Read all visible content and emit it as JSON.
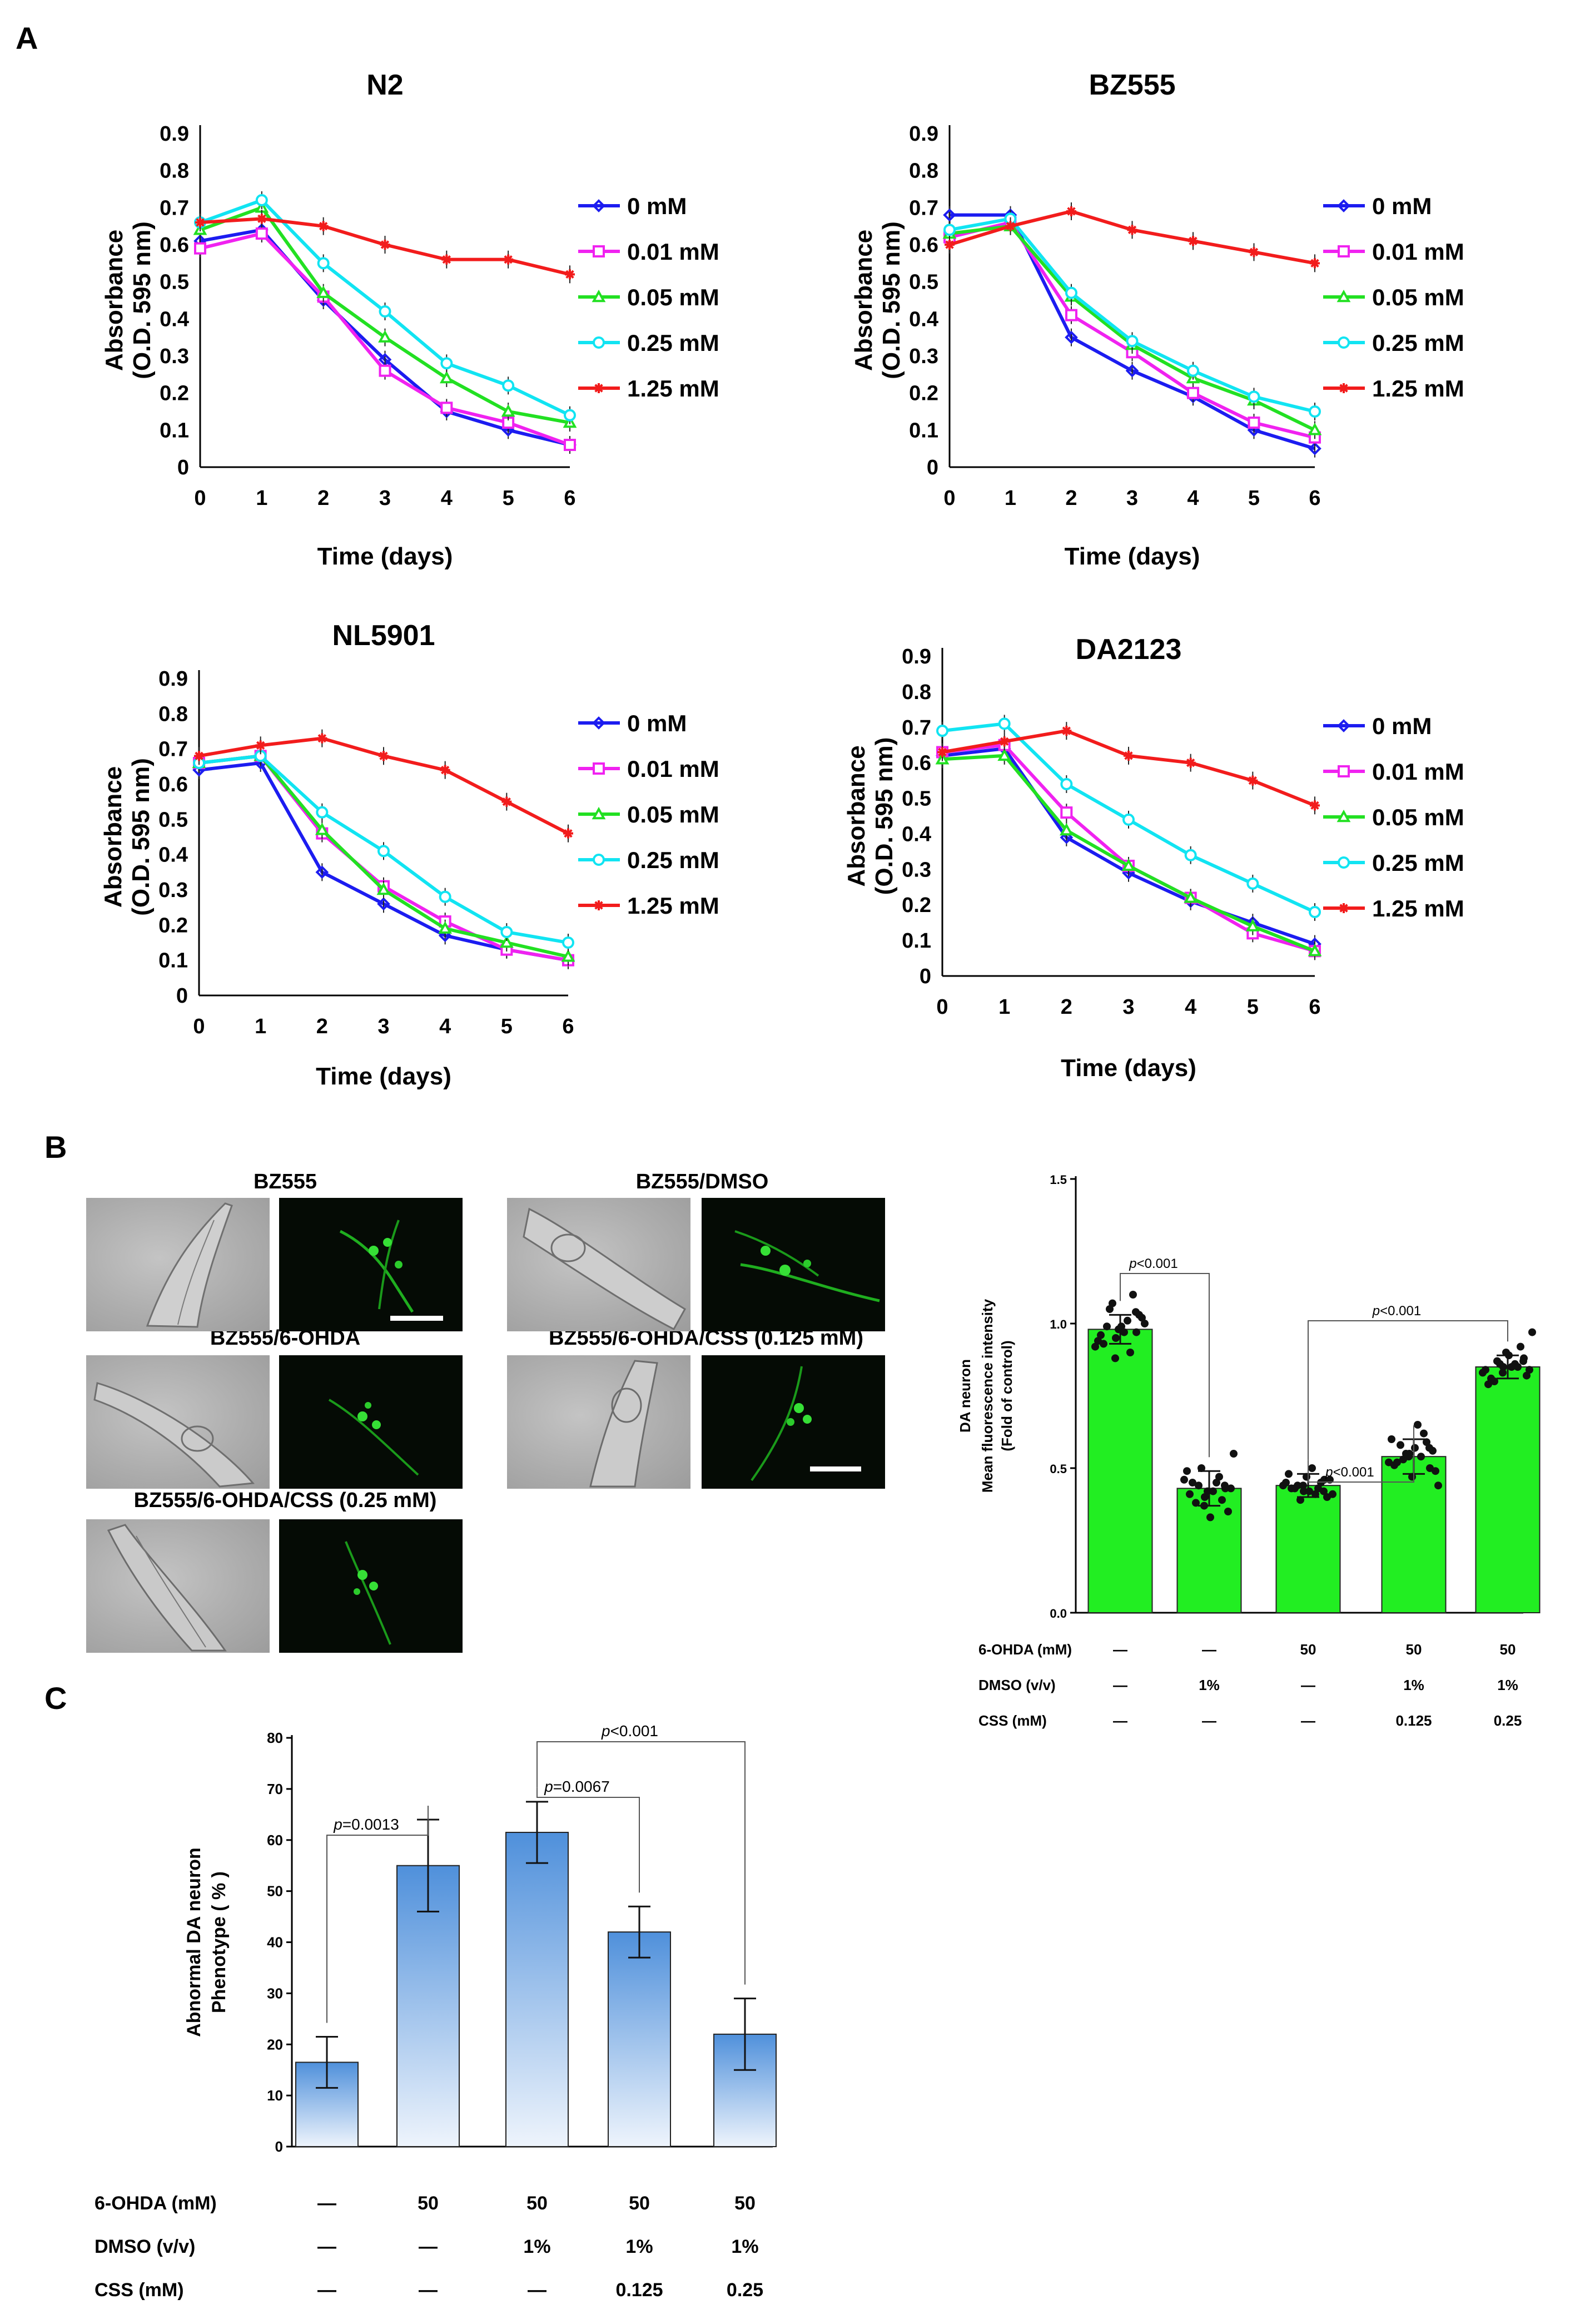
{
  "panel_letters": [
    "A",
    "B",
    "C"
  ],
  "chart_data": [
    {
      "type": "line",
      "title": "N2",
      "xlabel": "Time (days)",
      "ylabel": [
        "Absorbance",
        "(O.D. 595 nm)"
      ],
      "x": [
        0,
        1,
        2,
        3,
        4,
        5,
        6
      ],
      "xlim": [
        0,
        6
      ],
      "ylim": [
        0,
        0.9
      ],
      "yticks": [
        "0",
        "0.1",
        "0.2",
        "0.3",
        "0.4",
        "0.5",
        "0.6",
        "0.7",
        "0.8",
        "0.9"
      ],
      "legend": "right",
      "series": [
        {
          "name": "0 mM",
          "color": "#1c1cf0",
          "marker": "diamond",
          "values": [
            0.61,
            0.64,
            0.45,
            0.29,
            0.15,
            0.1,
            0.06
          ]
        },
        {
          "name": "0.01 mM",
          "color": "#f022f0",
          "marker": "square",
          "values": [
            0.59,
            0.63,
            0.46,
            0.26,
            0.16,
            0.12,
            0.06
          ]
        },
        {
          "name": "0.05 mM",
          "color": "#22e022",
          "marker": "triangle",
          "values": [
            0.64,
            0.7,
            0.47,
            0.35,
            0.24,
            0.15,
            0.12
          ]
        },
        {
          "name": "0.25 mM",
          "color": "#11e4f2",
          "marker": "circle",
          "values": [
            0.66,
            0.72,
            0.55,
            0.42,
            0.28,
            0.22,
            0.14
          ]
        },
        {
          "name": "1.25 mM",
          "color": "#f21c1c",
          "marker": "star",
          "values": [
            0.66,
            0.67,
            0.65,
            0.6,
            0.56,
            0.56,
            0.52
          ]
        }
      ]
    },
    {
      "type": "line",
      "title": "BZ555",
      "xlabel": "Time (days)",
      "ylabel": [
        "Absorbance",
        "(O.D. 595 nm)"
      ],
      "x": [
        0,
        1,
        2,
        3,
        4,
        5,
        6
      ],
      "xlim": [
        0,
        6
      ],
      "ylim": [
        0,
        0.9
      ],
      "yticks": [
        "0",
        "0.1",
        "0.2",
        "0.3",
        "0.4",
        "0.5",
        "0.6",
        "0.7",
        "0.8",
        "0.9"
      ],
      "legend": "right",
      "series": [
        {
          "name": "0 mM",
          "color": "#1c1cf0",
          "marker": "diamond",
          "values": [
            0.68,
            0.68,
            0.35,
            0.26,
            0.19,
            0.1,
            0.05
          ]
        },
        {
          "name": "0.01 mM",
          "color": "#f022f0",
          "marker": "square",
          "values": [
            0.62,
            0.66,
            0.41,
            0.31,
            0.2,
            0.12,
            0.08
          ]
        },
        {
          "name": "0.05 mM",
          "color": "#22e022",
          "marker": "triangle",
          "values": [
            0.63,
            0.65,
            0.46,
            0.33,
            0.24,
            0.18,
            0.1
          ]
        },
        {
          "name": "0.25 mM",
          "color": "#11e4f2",
          "marker": "circle",
          "values": [
            0.64,
            0.67,
            0.47,
            0.34,
            0.26,
            0.19,
            0.15
          ]
        },
        {
          "name": "1.25 mM",
          "color": "#f21c1c",
          "marker": "star",
          "values": [
            0.6,
            0.65,
            0.69,
            0.64,
            0.61,
            0.58,
            0.55
          ]
        }
      ]
    },
    {
      "type": "line",
      "title": "NL5901",
      "xlabel": "Time (days)",
      "ylabel": [
        "Absorbance",
        "(O.D. 595 nm)"
      ],
      "x": [
        0,
        1,
        2,
        3,
        4,
        5,
        6
      ],
      "xlim": [
        0,
        6
      ],
      "ylim": [
        0,
        0.9
      ],
      "yticks": [
        "0",
        "0.1",
        "0.2",
        "0.3",
        "0.4",
        "0.5",
        "0.6",
        "0.7",
        "0.8",
        "0.9"
      ],
      "legend": "right",
      "series": [
        {
          "name": "0 mM",
          "color": "#1c1cf0",
          "marker": "diamond",
          "values": [
            0.64,
            0.66,
            0.35,
            0.26,
            0.17,
            0.13,
            0.1
          ]
        },
        {
          "name": "0.01 mM",
          "color": "#f022f0",
          "marker": "square",
          "values": [
            0.66,
            0.68,
            0.46,
            0.31,
            0.21,
            0.13,
            0.1
          ]
        },
        {
          "name": "0.05 mM",
          "color": "#22e022",
          "marker": "triangle",
          "values": [
            0.66,
            0.68,
            0.47,
            0.3,
            0.19,
            0.15,
            0.11
          ]
        },
        {
          "name": "0.25 mM",
          "color": "#11e4f2",
          "marker": "circle",
          "values": [
            0.66,
            0.68,
            0.52,
            0.41,
            0.28,
            0.18,
            0.15
          ]
        },
        {
          "name": "1.25 mM",
          "color": "#f21c1c",
          "marker": "star",
          "values": [
            0.68,
            0.71,
            0.73,
            0.68,
            0.64,
            0.55,
            0.46
          ]
        }
      ]
    },
    {
      "type": "line",
      "title": "DA2123",
      "xlabel": "Time (days)",
      "ylabel": [
        "Absorbance",
        "(O.D. 595 nm)"
      ],
      "x": [
        0,
        1,
        2,
        3,
        4,
        5,
        6
      ],
      "xlim": [
        0,
        6
      ],
      "ylim": [
        0,
        0.9
      ],
      "yticks": [
        "0",
        "0.1",
        "0.2",
        "0.3",
        "0.4",
        "0.5",
        "0.6",
        "0.7",
        "0.8",
        "0.9"
      ],
      "legend": "right",
      "series": [
        {
          "name": "0 mM",
          "color": "#1c1cf0",
          "marker": "diamond",
          "values": [
            0.62,
            0.64,
            0.39,
            0.29,
            0.21,
            0.15,
            0.09
          ]
        },
        {
          "name": "0.01 mM",
          "color": "#f022f0",
          "marker": "square",
          "values": [
            0.63,
            0.65,
            0.46,
            0.31,
            0.22,
            0.12,
            0.07
          ]
        },
        {
          "name": "0.05 mM",
          "color": "#22e022",
          "marker": "triangle",
          "values": [
            0.61,
            0.62,
            0.41,
            0.31,
            0.22,
            0.14,
            0.07
          ]
        },
        {
          "name": "0.25 mM",
          "color": "#11e4f2",
          "marker": "circle",
          "values": [
            0.69,
            0.71,
            0.54,
            0.44,
            0.34,
            0.26,
            0.18
          ]
        },
        {
          "name": "1.25 mM",
          "color": "#f21c1c",
          "marker": "star",
          "values": [
            0.63,
            0.66,
            0.69,
            0.62,
            0.6,
            0.55,
            0.48
          ]
        }
      ]
    },
    {
      "type": "bar",
      "title": "",
      "ylabel": [
        "DA neuron",
        "Mean fluorescence intensity",
        "(Fold of control)"
      ],
      "categories": [
        "1",
        "2",
        "3",
        "4",
        "5"
      ],
      "values": [
        0.98,
        0.43,
        0.44,
        0.54,
        0.85
      ],
      "errors": [
        0.05,
        0.06,
        0.04,
        0.06,
        0.04
      ],
      "scatter_points": [
        [
          0.92,
          0.95,
          0.97,
          0.99,
          1.01,
          0.94,
          0.98,
          1.03,
          1.05,
          0.9,
          0.96,
          0.99,
          1.02,
          1.07,
          1.1,
          0.93,
          0.97,
          1.0,
          0.88,
          1.04
        ],
        [
          0.46,
          0.4,
          0.43,
          0.38,
          0.45,
          0.49,
          0.42,
          0.35,
          0.44,
          0.47,
          0.41,
          0.33,
          0.43,
          0.5,
          0.39,
          0.45,
          0.42,
          0.55,
          0.37,
          0.44
        ],
        [
          0.44,
          0.42,
          0.46,
          0.43,
          0.41,
          0.45,
          0.47,
          0.4,
          0.44,
          0.43,
          0.48,
          0.42,
          0.46,
          0.39,
          0.45,
          0.43,
          0.5,
          0.41,
          0.44,
          0.42
        ],
        [
          0.52,
          0.55,
          0.5,
          0.58,
          0.54,
          0.6,
          0.47,
          0.56,
          0.53,
          0.62,
          0.51,
          0.57,
          0.49,
          0.55,
          0.59,
          0.52,
          0.65,
          0.44,
          0.54,
          0.57
        ],
        [
          0.83,
          0.85,
          0.88,
          0.8,
          0.86,
          0.84,
          0.9,
          0.82,
          0.87,
          0.85,
          0.79,
          0.89,
          0.84,
          0.86,
          0.92,
          0.81,
          0.85,
          0.97,
          0.83,
          0.87
        ]
      ],
      "ylim": [
        0,
        1.5
      ],
      "yticks": [
        "0.0",
        "0.5",
        "1.0",
        "1.5"
      ],
      "bar_color": "#22ee22",
      "annotations": [
        {
          "from": 0,
          "to": 1,
          "p": "<0.001"
        },
        {
          "from": 2,
          "to": 4,
          "p": "<0.001"
        },
        {
          "from": 2,
          "to": 3,
          "p": "<0.001"
        }
      ],
      "conditions": [
        {
          "label": "6-OHDA (mM)",
          "values": [
            "—",
            "—",
            "50",
            "50",
            "50"
          ]
        },
        {
          "label": "DMSO (v/v)",
          "values": [
            "—",
            "1%",
            "—",
            "1%",
            "1%"
          ]
        },
        {
          "label": "CSS (mM)",
          "values": [
            "—",
            "—",
            "—",
            "0.125",
            "0.25"
          ]
        }
      ]
    },
    {
      "type": "bar",
      "title": "",
      "ylabel": [
        "Abnormal DA neuron",
        "Phenotype ( % )"
      ],
      "categories": [
        "1",
        "2",
        "3",
        "4",
        "5"
      ],
      "values": [
        16.5,
        55,
        61.5,
        42,
        22
      ],
      "errors": [
        5,
        9,
        6,
        5,
        7
      ],
      "ylim": [
        0,
        80
      ],
      "yticks": [
        "0",
        "10",
        "20",
        "30",
        "40",
        "50",
        "60",
        "70",
        "80"
      ],
      "bar_color": "#4d8fda",
      "annotations": [
        {
          "from": 0,
          "to": 1,
          "p": "=0.0013"
        },
        {
          "from": 2,
          "to": 3,
          "p": "=0.0067"
        },
        {
          "from": 2,
          "to": 4,
          "p": "<0.001"
        }
      ],
      "conditions": [
        {
          "label": "6-OHDA (mM)",
          "values": [
            "—",
            "50",
            "50",
            "50",
            "50"
          ]
        },
        {
          "label": "DMSO (v/v)",
          "values": [
            "—",
            "—",
            "1%",
            "1%",
            "1%"
          ]
        },
        {
          "label": "CSS (mM)",
          "values": [
            "—",
            "—",
            "—",
            "0.125",
            "0.25"
          ]
        }
      ]
    }
  ],
  "micrographs": {
    "titles": [
      "BZ555",
      "BZ555/DMSO",
      "BZ555/6-OHDA",
      "BZ555/6-OHDA/CSS  (0.125 mM)",
      "BZ555/6-OHDA/CSS  (0.25 mM)"
    ],
    "pair_kinds": [
      "brightfield",
      "fluorescence"
    ]
  }
}
